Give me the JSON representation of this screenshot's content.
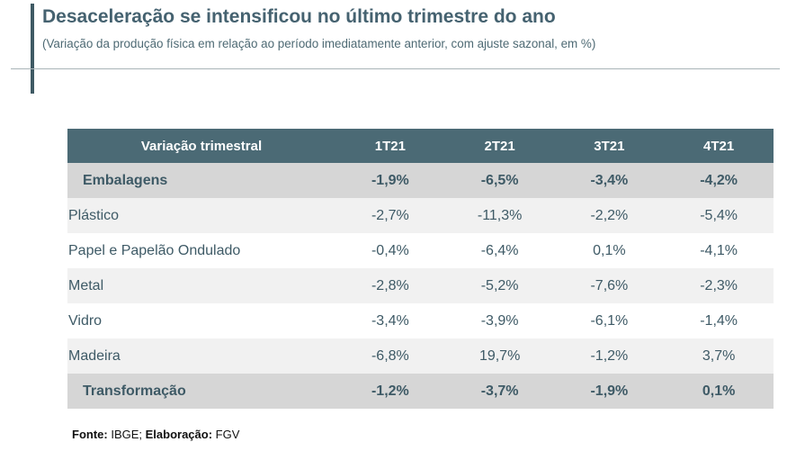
{
  "title": "Desaceleração se intensificou no último trimestre do ano",
  "subtitle": "(Variação da produção física em relação ao período imediatamente anterior, com ajuste sazonal, em %)",
  "table": {
    "headers": [
      "Variação trimestral",
      "1T21",
      "2T21",
      "3T21",
      "4T21"
    ],
    "rows": [
      {
        "label": "Embalagens",
        "values": [
          "-1,9%",
          "-6,5%",
          "-3,4%",
          "-4,2%"
        ],
        "total": true
      },
      {
        "label": "Plástico",
        "values": [
          "-2,7%",
          "-11,3%",
          "-2,2%",
          "-5,4%"
        ],
        "total": false
      },
      {
        "label": "Papel e Papelão Ondulado",
        "values": [
          "-0,4%",
          "-6,4%",
          "0,1%",
          "-4,1%"
        ],
        "total": false
      },
      {
        "label": "Metal",
        "values": [
          "-2,8%",
          "-5,2%",
          "-7,6%",
          "-2,3%"
        ],
        "total": false
      },
      {
        "label": "Vidro",
        "values": [
          "-3,4%",
          "-3,9%",
          "-6,1%",
          "-1,4%"
        ],
        "total": false
      },
      {
        "label": "Madeira",
        "values": [
          "-6,8%",
          "19,7%",
          "-1,2%",
          "3,7%"
        ],
        "total": false
      },
      {
        "label": "Transformação",
        "values": [
          "-1,2%",
          "-3,7%",
          "-1,9%",
          "0,1%"
        ],
        "total": true
      }
    ]
  },
  "source": {
    "source_label": "Fonte:",
    "source_value": " IBGE; ",
    "elab_label": "Elaboração:",
    "elab_value": " FGV"
  },
  "colors": {
    "header_bg": "#4b6a75",
    "total_row_bg": "#d6d6d6",
    "stripe_bg": "#f1f1f1",
    "title_color": "#456270"
  }
}
